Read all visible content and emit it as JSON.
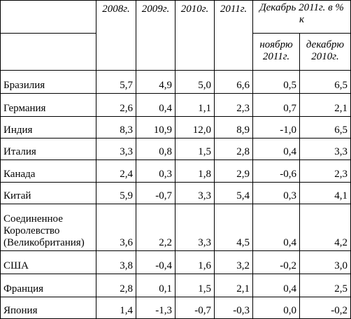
{
  "header": {
    "years": [
      "2008г.",
      "2009г.",
      "2010г.",
      "2011г."
    ],
    "group": "Декабрь 2011г. в % к",
    "subheaders": [
      "ноябрю 2011г.",
      "декабрю 2010г."
    ]
  },
  "table": {
    "rows": [
      [
        "Бразилия",
        "5,7",
        "4,9",
        "5,0",
        "6,6",
        "0,5",
        "6,5"
      ],
      [
        "Германия",
        "2,6",
        "0,4",
        "1,1",
        "2,3",
        "0,7",
        "2,1"
      ],
      [
        "Индия",
        "8,3",
        "10,9",
        "12,0",
        "8,9",
        "-1,0",
        "6,5"
      ],
      [
        "Италия",
        "3,3",
        "0,8",
        "1,5",
        "2,8",
        "0,4",
        "3,3"
      ],
      [
        "Канада",
        "2,4",
        "0,3",
        "1,8",
        "2,9",
        "-0,6",
        "2,3"
      ],
      [
        "Китай",
        "5,9",
        "-0,7",
        "3,3",
        "5,4",
        "0,3",
        "4,1"
      ],
      [
        "Соединенное Королевство (Великобритания)",
        "3,6",
        "2,2",
        "3,3",
        "4,5",
        "0,4",
        "4,2"
      ],
      [
        "США",
        "3,8",
        "-0,4",
        "1,6",
        "3,2",
        "-0,2",
        "3,0"
      ],
      [
        "Франция",
        "2,8",
        "0,1",
        "1,5",
        "2,1",
        "0,4",
        "2,5"
      ],
      [
        "Япония",
        "1,4",
        "-1,3",
        "-0,7",
        "-0,3",
        "0,0",
        "-0,2"
      ]
    ]
  }
}
